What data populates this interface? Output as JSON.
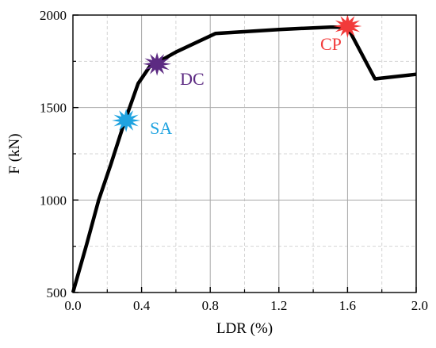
{
  "chart_data": {
    "type": "line",
    "title": "",
    "xlabel": "LDR (%)",
    "ylabel": "F (kN)",
    "xlim": [
      0.0,
      2.0
    ],
    "ylim": [
      500,
      2000
    ],
    "x_major_ticks": [
      0.0,
      0.4,
      0.8,
      1.2,
      1.6,
      2.0
    ],
    "x_minor_ticks": [
      0.2,
      0.6,
      1.0,
      1.4,
      1.8
    ],
    "x_tick_labels": [
      "0.0",
      "0.4",
      "0.8",
      "1.2",
      "1.6",
      "2.0"
    ],
    "y_major_ticks": [
      500,
      1000,
      1500,
      2000
    ],
    "y_minor_ticks": [
      750,
      1250,
      1750
    ],
    "y_tick_labels": [
      "500",
      "1000",
      "1500",
      "2000"
    ],
    "grid": true,
    "legend": "none",
    "series": [
      {
        "color": "#000000",
        "x": [
          0.0,
          0.08,
          0.15,
          0.22,
          0.3,
          0.38,
          0.45,
          0.5,
          0.6,
          0.83,
          1.2,
          1.5,
          1.6,
          1.76,
          2.0
        ],
        "y": [
          500,
          760,
          1000,
          1190,
          1420,
          1630,
          1725,
          1748,
          1800,
          1900,
          1922,
          1935,
          1935,
          1655,
          1680
        ]
      }
    ],
    "annotations": [
      {
        "label": "SA",
        "x": 0.31,
        "y": 1430,
        "color": "#1fa3e0",
        "marker": "starburst-icon"
      },
      {
        "label": "DC",
        "x": 0.49,
        "y": 1735,
        "color": "#5c2a82",
        "marker": "starburst-icon"
      },
      {
        "label": "CP",
        "x": 1.6,
        "y": 1940,
        "color": "#f23a3a",
        "marker": "starburst-icon"
      }
    ]
  }
}
